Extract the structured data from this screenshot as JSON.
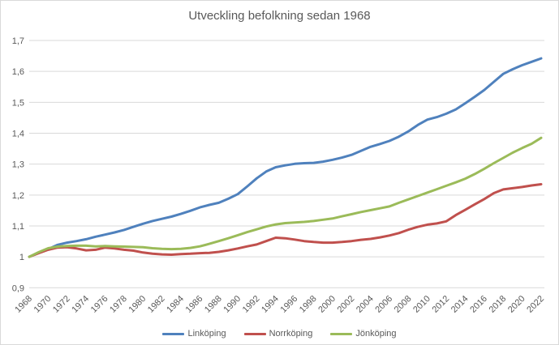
{
  "chart_data": {
    "type": "line",
    "title": "Utveckling befolkning sedan 1968",
    "xlabel": "",
    "ylabel": "",
    "x": [
      1968,
      1969,
      1970,
      1971,
      1972,
      1973,
      1974,
      1975,
      1976,
      1977,
      1978,
      1979,
      1980,
      1981,
      1982,
      1983,
      1984,
      1985,
      1986,
      1987,
      1988,
      1989,
      1990,
      1991,
      1992,
      1993,
      1994,
      1995,
      1996,
      1997,
      1998,
      1999,
      2000,
      2001,
      2002,
      2003,
      2004,
      2005,
      2006,
      2007,
      2008,
      2009,
      2010,
      2011,
      2012,
      2013,
      2014,
      2015,
      2016,
      2017,
      2018,
      2019,
      2020,
      2021,
      2022
    ],
    "x_tick_labels": [
      "1968",
      "1970",
      "1972",
      "1974",
      "1976",
      "1978",
      "1980",
      "1982",
      "1984",
      "1986",
      "1988",
      "1990",
      "1992",
      "1994",
      "1996",
      "1998",
      "2000",
      "2002",
      "2004",
      "2006",
      "2008",
      "2010",
      "2012",
      "2014",
      "2016",
      "2018",
      "2020",
      "2022"
    ],
    "y_tick_labels": [
      "0,9",
      "1",
      "1,1",
      "1,2",
      "1,3",
      "1,4",
      "1,5",
      "1,6",
      "1,7"
    ],
    "ylim": [
      0.9,
      1.7
    ],
    "y_step": 0.1,
    "grid": "horizontal",
    "legend_position": "bottom",
    "series": [
      {
        "name": "Linköping",
        "color": "#4F81BD",
        "values": [
          1.0,
          1.013,
          1.025,
          1.039,
          1.046,
          1.051,
          1.057,
          1.065,
          1.072,
          1.079,
          1.087,
          1.097,
          1.107,
          1.116,
          1.123,
          1.13,
          1.139,
          1.149,
          1.16,
          1.168,
          1.175,
          1.188,
          1.203,
          1.228,
          1.254,
          1.276,
          1.29,
          1.296,
          1.301,
          1.303,
          1.304,
          1.308,
          1.314,
          1.321,
          1.33,
          1.343,
          1.356,
          1.365,
          1.375,
          1.389,
          1.406,
          1.427,
          1.444,
          1.452,
          1.463,
          1.477,
          1.497,
          1.518,
          1.54,
          1.566,
          1.592,
          1.607,
          1.62,
          1.631,
          1.642
        ]
      },
      {
        "name": "Norrköping",
        "color": "#C0504D",
        "values": [
          1.0,
          1.012,
          1.023,
          1.03,
          1.031,
          1.027,
          1.021,
          1.023,
          1.03,
          1.027,
          1.023,
          1.02,
          1.014,
          1.01,
          1.008,
          1.007,
          1.009,
          1.01,
          1.012,
          1.013,
          1.016,
          1.021,
          1.027,
          1.034,
          1.04,
          1.051,
          1.062,
          1.06,
          1.056,
          1.051,
          1.048,
          1.046,
          1.046,
          1.048,
          1.051,
          1.055,
          1.058,
          1.063,
          1.069,
          1.077,
          1.088,
          1.097,
          1.104,
          1.108,
          1.115,
          1.135,
          1.152,
          1.17,
          1.187,
          1.206,
          1.218,
          1.222,
          1.226,
          1.231,
          1.235
        ]
      },
      {
        "name": "Jönköping",
        "color": "#9BBB59",
        "values": [
          1.0,
          1.015,
          1.028,
          1.033,
          1.035,
          1.036,
          1.036,
          1.034,
          1.035,
          1.034,
          1.033,
          1.032,
          1.031,
          1.028,
          1.026,
          1.025,
          1.026,
          1.029,
          1.034,
          1.042,
          1.051,
          1.06,
          1.07,
          1.08,
          1.089,
          1.098,
          1.105,
          1.109,
          1.111,
          1.113,
          1.116,
          1.12,
          1.124,
          1.131,
          1.138,
          1.145,
          1.151,
          1.157,
          1.163,
          1.175,
          1.186,
          1.197,
          1.208,
          1.219,
          1.23,
          1.241,
          1.253,
          1.268,
          1.285,
          1.303,
          1.32,
          1.337,
          1.352,
          1.366,
          1.385
        ]
      }
    ],
    "colors": {
      "text": "#595959",
      "gridline": "#D9D9D9",
      "background": "#FFFFFF"
    }
  }
}
